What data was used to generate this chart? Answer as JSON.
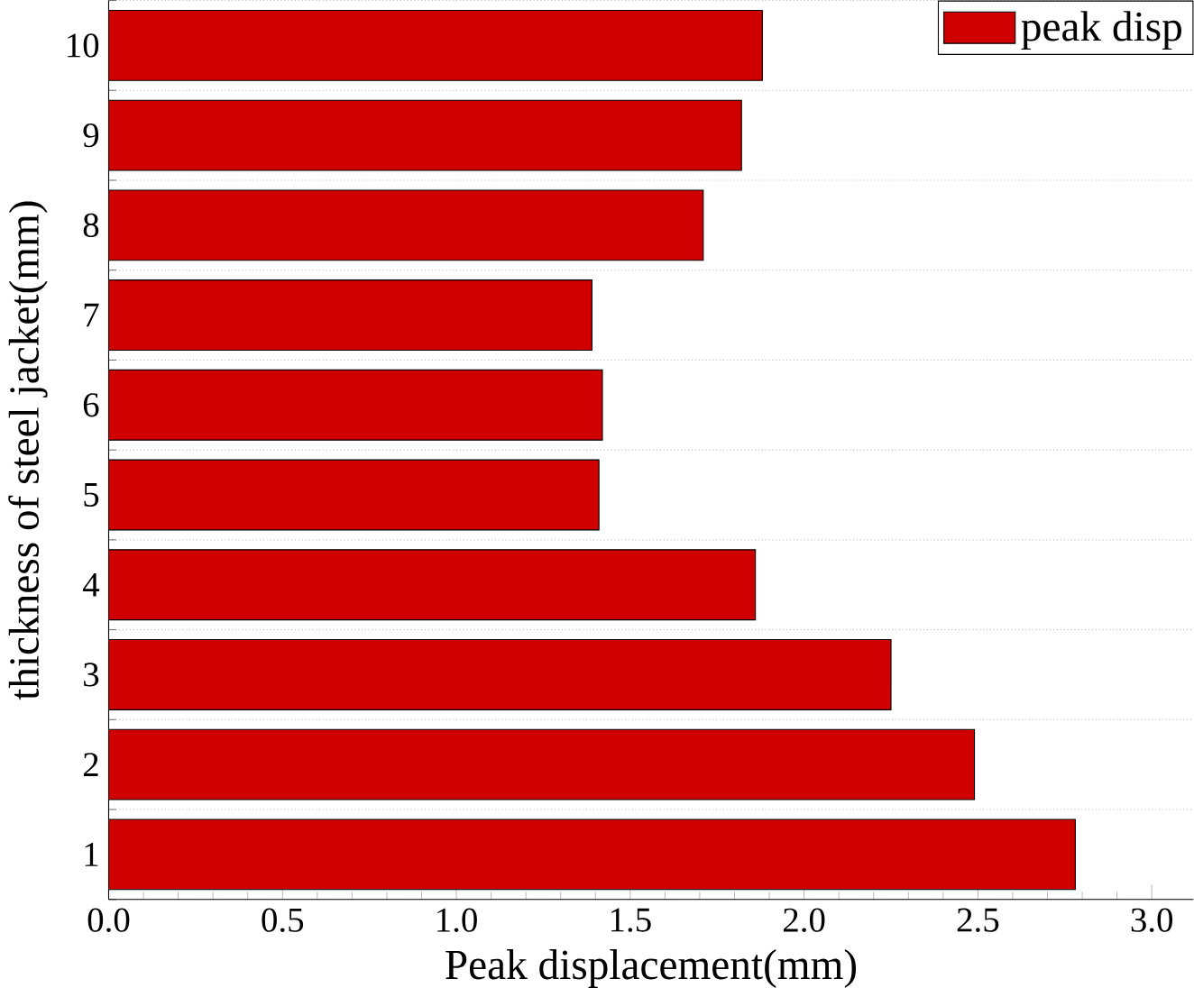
{
  "chart_data": {
    "type": "bar",
    "orientation": "horizontal",
    "xlabel": "Peak displacement(mm)",
    "ylabel": "thickness of steel jacket(mm)",
    "categories": [
      "10",
      "9",
      "8",
      "7",
      "6",
      "5",
      "4",
      "3",
      "2",
      "1"
    ],
    "series": [
      {
        "name": "peak disp",
        "color": "#d00000",
        "values": [
          1.88,
          1.82,
          1.71,
          1.39,
          1.42,
          1.41,
          1.86,
          2.25,
          2.49,
          2.78
        ]
      }
    ],
    "xlim": [
      0,
      3.12
    ],
    "xticks": [
      {
        "value": 0,
        "label": "0.0"
      },
      {
        "value": 0.5,
        "label": "0.5"
      },
      {
        "value": 1,
        "label": "1.0"
      },
      {
        "value": 1.5,
        "label": "1.5"
      },
      {
        "value": 2,
        "label": "2.0"
      },
      {
        "value": 2.5,
        "label": "2.5"
      },
      {
        "value": 3,
        "label": "3.0"
      }
    ],
    "grid": "y",
    "legend": "top right"
  }
}
